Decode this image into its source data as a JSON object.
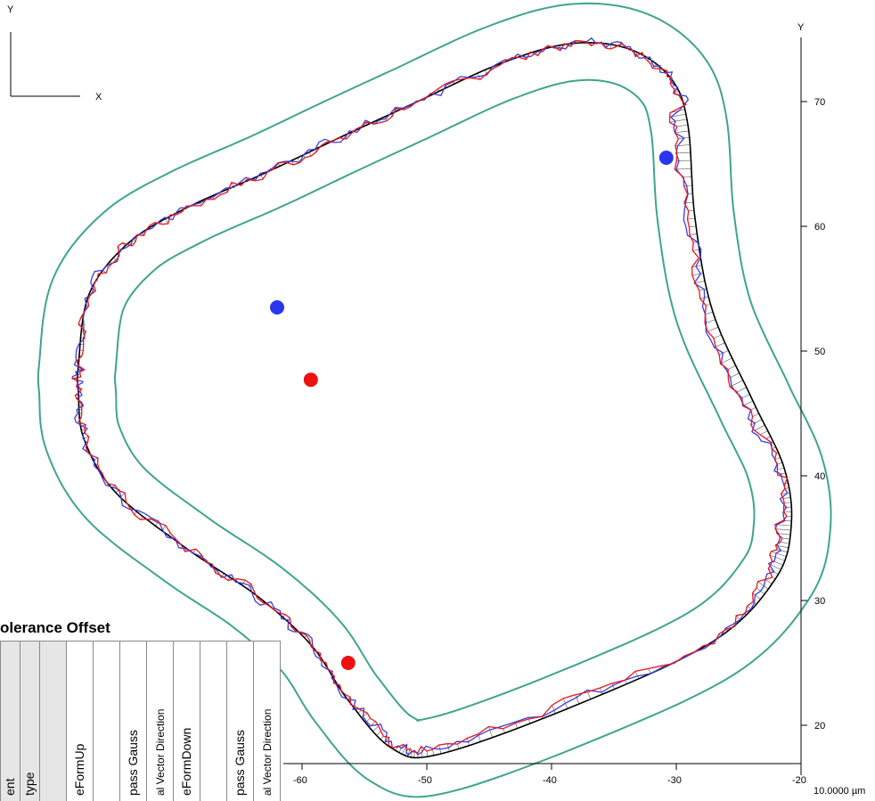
{
  "chart_data": {
    "type": "line",
    "title": "",
    "xlabel": "",
    "ylabel": "Y",
    "xlim": [
      -63,
      -20
    ],
    "ylim": [
      16,
      76
    ],
    "x_ticks": [
      -60,
      -50,
      -40,
      -30,
      -20
    ],
    "y_ticks": [
      20,
      30,
      40,
      50,
      60,
      70
    ],
    "scale_label": "10.0000 µm",
    "coordinate_indicator": {
      "x_label": "X",
      "y_label": "Y"
    },
    "grid": false,
    "colors": {
      "nominal": "#000000",
      "measured_up": "#e61919",
      "measured_down": "#3b3be6",
      "tolerance": "#3fa58c",
      "deviation_hatch": "#555555",
      "marker_blue": "#2a36ee",
      "marker_red": "#ee1111"
    },
    "series": [
      {
        "name": "",
        "style": "nominal-contour"
      },
      {
        "name": "",
        "style": "measured-red",
        "seed": 7
      },
      {
        "name": "",
        "style": "measured-blue",
        "seed": 19
      },
      {
        "name": "",
        "style": "tolerance-outer"
      },
      {
        "name": "",
        "style": "tolerance-inner"
      }
    ],
    "markers": [
      {
        "color": "blue",
        "x": -30.8,
        "y": 65.5
      },
      {
        "color": "blue",
        "x": -62.0,
        "y": 53.5
      },
      {
        "color": "red",
        "x": -59.3,
        "y": 47.7
      },
      {
        "color": "red",
        "x": -56.3,
        "y": 25.0
      }
    ]
  },
  "tolerance_panel": {
    "title": "olerance Offset",
    "columns": [
      "ent",
      "type",
      "",
      "eFormUp",
      "",
      "pass Gauss",
      "al Vector Direction",
      "eFormDown",
      "",
      "pass Gauss",
      "al Vector Direction"
    ]
  }
}
